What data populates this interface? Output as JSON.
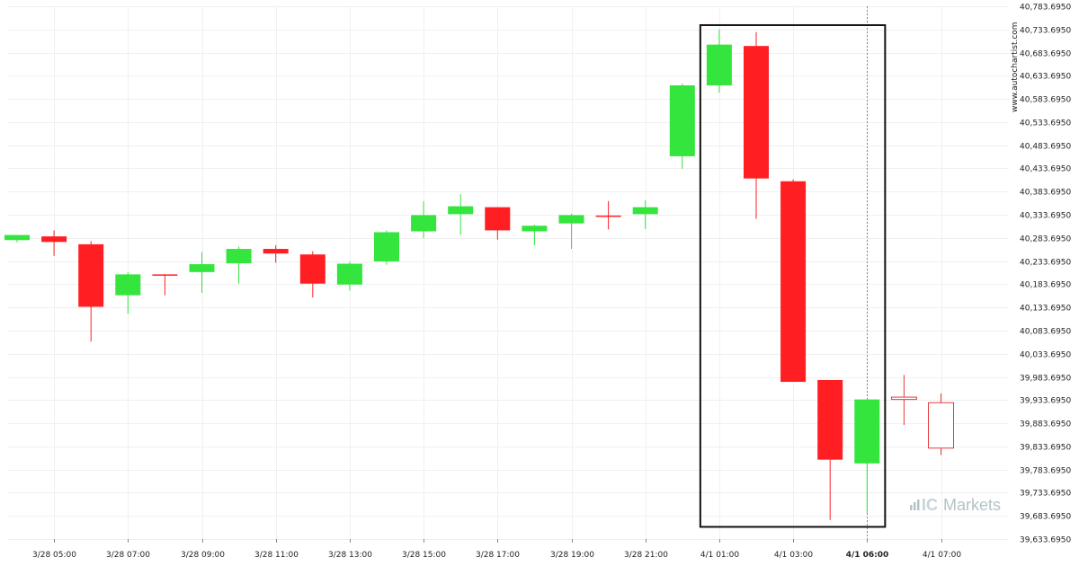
{
  "chart_data": {
    "type": "candlestick",
    "y_ticks": [
      "40,783.6950",
      "40,733.6950",
      "40,683.6950",
      "40,633.6950",
      "40,583.6950",
      "40,533.6950",
      "40,483.6950",
      "40,433.6950",
      "40,383.6950",
      "40,333.6950",
      "40,283.6950",
      "40,233.6950",
      "40,183.6950",
      "40,133.6950",
      "40,083.6950",
      "40,033.6950",
      "39,983.6950",
      "39,933.6950",
      "39,883.6950",
      "39,833.6950",
      "39,783.6950",
      "39,733.6950",
      "39,683.6950",
      "39,633.6950"
    ],
    "ylim": [
      39633.695,
      40783.695
    ],
    "x_ticks": [
      {
        "slot": 1,
        "label": "3/28 05:00"
      },
      {
        "slot": 3,
        "label": "3/28 07:00"
      },
      {
        "slot": 5,
        "label": "3/28 09:00"
      },
      {
        "slot": 7,
        "label": "3/28 11:00"
      },
      {
        "slot": 9,
        "label": "3/28 13:00"
      },
      {
        "slot": 11,
        "label": "3/28 15:00"
      },
      {
        "slot": 13,
        "label": "3/28 17:00"
      },
      {
        "slot": 15,
        "label": "3/28 19:00"
      },
      {
        "slot": 17,
        "label": "3/28 21:00"
      },
      {
        "slot": 19,
        "label": "4/1 01:00"
      },
      {
        "slot": 21,
        "label": "4/1 03:00"
      },
      {
        "slot": 23,
        "label": "4/1 06:00",
        "bold": true
      },
      {
        "slot": 25,
        "label": "4/1 07:00"
      }
    ],
    "candles": [
      {
        "o": 40279,
        "h": 40290,
        "l": 40274,
        "c": 40290,
        "style": "up"
      },
      {
        "o": 40287,
        "h": 40300,
        "l": 40245,
        "c": 40275,
        "style": "down"
      },
      {
        "o": 40270,
        "h": 40277,
        "l": 40060,
        "c": 40135,
        "style": "down"
      },
      {
        "o": 40160,
        "h": 40210,
        "l": 40120,
        "c": 40205,
        "style": "up"
      },
      {
        "o": 40205,
        "h": 40205,
        "l": 40160,
        "c": 40203,
        "style": "down"
      },
      {
        "o": 40210,
        "h": 40253,
        "l": 40165,
        "c": 40227,
        "style": "up"
      },
      {
        "o": 40229,
        "h": 40265,
        "l": 40185,
        "c": 40260,
        "style": "up"
      },
      {
        "o": 40260,
        "h": 40268,
        "l": 40230,
        "c": 40250,
        "style": "down"
      },
      {
        "o": 40248,
        "h": 40255,
        "l": 40155,
        "c": 40185,
        "style": "down"
      },
      {
        "o": 40183,
        "h": 40232,
        "l": 40170,
        "c": 40228,
        "style": "up"
      },
      {
        "o": 40233,
        "h": 40300,
        "l": 40226,
        "c": 40296,
        "style": "up"
      },
      {
        "o": 40298,
        "h": 40363,
        "l": 40283,
        "c": 40333,
        "style": "up"
      },
      {
        "o": 40335,
        "h": 40378,
        "l": 40290,
        "c": 40352,
        "style": "up"
      },
      {
        "o": 40350,
        "h": 40350,
        "l": 40280,
        "c": 40300,
        "style": "down"
      },
      {
        "o": 40298,
        "h": 40312,
        "l": 40268,
        "c": 40310,
        "style": "up"
      },
      {
        "o": 40315,
        "h": 40336,
        "l": 40260,
        "c": 40333,
        "style": "up"
      },
      {
        "o": 40332,
        "h": 40363,
        "l": 40302,
        "c": 40330,
        "style": "down"
      },
      {
        "o": 40335,
        "h": 40365,
        "l": 40303,
        "c": 40350,
        "style": "up"
      },
      {
        "o": 40460,
        "h": 40617,
        "l": 40433,
        "c": 40613,
        "style": "up"
      },
      {
        "o": 40613,
        "h": 40734,
        "l": 40597,
        "c": 40701,
        "style": "up"
      },
      {
        "o": 40698,
        "h": 40728,
        "l": 40325,
        "c": 40412,
        "style": "down"
      },
      {
        "o": 40406,
        "h": 40410,
        "l": 39973,
        "c": 39973,
        "style": "down"
      },
      {
        "o": 39977,
        "h": 39977,
        "l": 39675,
        "c": 39805,
        "style": "down"
      },
      {
        "o": 39797,
        "h": 39935,
        "l": 39690,
        "c": 39935,
        "style": "up"
      },
      {
        "o": 39940,
        "h": 39988,
        "l": 39880,
        "c": 39935,
        "style": "hollow"
      },
      {
        "o": 39928,
        "h": 39948,
        "l": 39815,
        "c": 39830,
        "style": "hollow"
      }
    ],
    "highlight_box": {
      "from_slot": 19,
      "to_slot": 23,
      "ymin": 39660,
      "ymax": 40743
    },
    "current_time_slot": 23,
    "colors": {
      "up": "#33e53d",
      "down": "#ff1f23",
      "hollow": "#e8383c",
      "box": "#111111",
      "vline": "#888888"
    }
  },
  "watermarks": {
    "site": "www.autochartist.com",
    "logo_prefix": "IC",
    "logo_suffix": "Markets"
  }
}
